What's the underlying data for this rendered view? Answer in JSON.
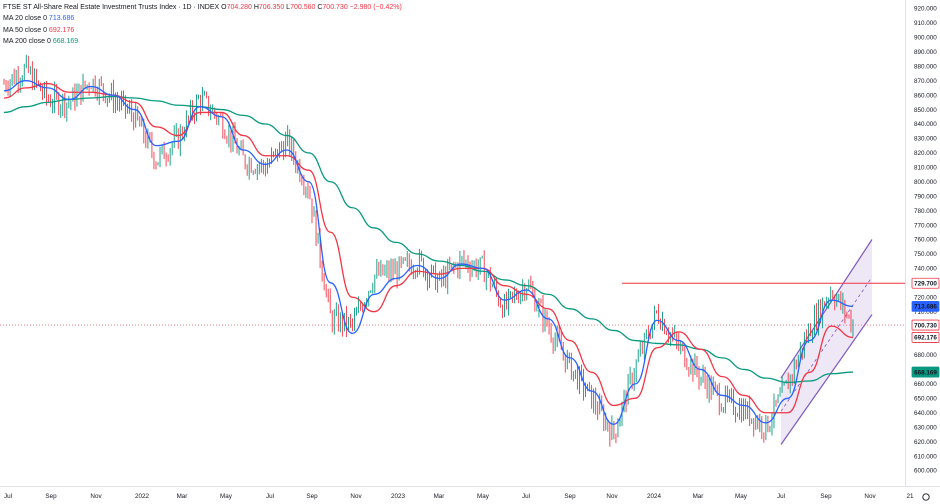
{
  "title": "FTSE ST All-Share Real Estate Investment Trusts Index · 1D · INDEX",
  "ohlc": {
    "open_label": "O",
    "open": "704.280",
    "high_label": "H",
    "high": "706.350",
    "low_label": "L",
    "low": "700.560",
    "close_label": "C",
    "close": "700.730",
    "change": "−2.980 (−0.42%)"
  },
  "colors": {
    "up": "#089981",
    "down": "#f23645",
    "ma20": "#2962ff",
    "ma50": "#f23645",
    "ma200": "#089981",
    "channel": "#7e57c2",
    "resistance": "#f23645",
    "last": "#f23645"
  },
  "chart_data": {
    "type": "line",
    "title": "FTSE ST All-Share Real Estate Investment Trusts Index · 1D · INDEX",
    "x_tick_labels": [
      "Jul",
      "Sep",
      "Nov",
      "2022",
      "Mar",
      "May",
      "Jul",
      "Sep",
      "Nov",
      "2023",
      "Mar",
      "May",
      "Jul",
      "Sep",
      "Nov",
      "2024",
      "Mar",
      "May",
      "Jul",
      "Sep",
      "Nov",
      "21"
    ],
    "y_tick_labels": [
      "600.000",
      "610.000",
      "620.000",
      "630.000",
      "640.000",
      "650.000",
      "660.000",
      "670.000",
      "680.000",
      "690.000",
      "700.000",
      "710.000",
      "720.000",
      "730.000",
      "740.000",
      "750.000",
      "760.000",
      "770.000",
      "780.000",
      "790.000",
      "800.000",
      "810.000",
      "820.000",
      "830.000",
      "840.000",
      "850.000",
      "860.000",
      "870.000",
      "880.000",
      "890.000",
      "900.000",
      "910.000",
      "920.000"
    ],
    "ylim": [
      600,
      920
    ],
    "x": [
      "2021-07",
      "2021-08",
      "2021-09",
      "2021-10",
      "2021-11",
      "2021-12",
      "2022-01",
      "2022-02",
      "2022-03",
      "2022-04",
      "2022-05",
      "2022-06",
      "2022-07",
      "2022-08",
      "2022-09",
      "2022-10",
      "2022-11",
      "2022-12",
      "2023-01",
      "2023-02",
      "2023-03",
      "2023-04",
      "2023-05",
      "2023-06",
      "2023-07",
      "2023-08",
      "2023-09",
      "2023-10",
      "2023-11",
      "2023-12",
      "2024-01",
      "2024-02",
      "2024-03",
      "2024-04",
      "2024-05",
      "2024-06",
      "2024-07",
      "2024-08",
      "2024-09",
      "2024-10"
    ],
    "series": [
      {
        "name": "Price",
        "values": [
          868,
          878,
          857,
          855,
          870,
          858,
          845,
          815,
          830,
          858,
          842,
          815,
          810,
          828,
          795,
          705,
          700,
          735,
          738,
          745,
          730,
          745,
          740,
          712,
          730,
          700,
          672,
          650,
          625,
          672,
          710,
          685,
          665,
          648,
          642,
          630,
          660,
          698,
          725,
          701
        ]
      },
      {
        "name": "MA 20 close 0",
        "values": [
          863,
          870,
          865,
          857,
          866,
          860,
          850,
          825,
          828,
          852,
          845,
          822,
          812,
          822,
          800,
          730,
          695,
          722,
          733,
          742,
          733,
          743,
          740,
          718,
          725,
          705,
          678,
          655,
          632,
          660,
          704,
          690,
          670,
          652,
          645,
          633,
          650,
          690,
          718,
          713.686
        ]
      },
      {
        "name": "MA 50 close 0",
        "values": [
          858,
          865,
          868,
          862,
          862,
          860,
          855,
          838,
          832,
          848,
          848,
          832,
          818,
          818,
          808,
          765,
          720,
          710,
          728,
          738,
          736,
          740,
          740,
          728,
          722,
          712,
          690,
          668,
          645,
          650,
          685,
          696,
          684,
          665,
          652,
          640,
          640,
          668,
          700,
          692.176
        ]
      },
      {
        "name": "MA 200 close 0",
        "values": [
          848,
          852,
          855,
          857,
          858,
          859,
          858,
          856,
          853,
          852,
          850,
          846,
          840,
          832,
          820,
          800,
          782,
          768,
          758,
          750,
          745,
          742,
          738,
          732,
          728,
          722,
          712,
          705,
          697,
          690,
          688,
          687,
          684,
          678,
          670,
          664,
          661,
          662,
          667,
          668.169
        ]
      }
    ],
    "price_labels": [
      {
        "name": "Resistance",
        "value": "729.700"
      },
      {
        "name": "MA 20 close 0",
        "value": "713.686"
      },
      {
        "name": "Last",
        "value": "700.730"
      },
      {
        "name": "MA 50 close 0",
        "value": "692.176"
      },
      {
        "name": "MA 200 close 0",
        "value": "668.169"
      }
    ],
    "resistance": 729.7,
    "channel": {
      "start": "2024-07",
      "end": "2024-10",
      "lower_start": 618,
      "lower_end": 708,
      "upper_start": 664,
      "upper_end": 760
    },
    "grid": false,
    "legend": "top-left"
  }
}
